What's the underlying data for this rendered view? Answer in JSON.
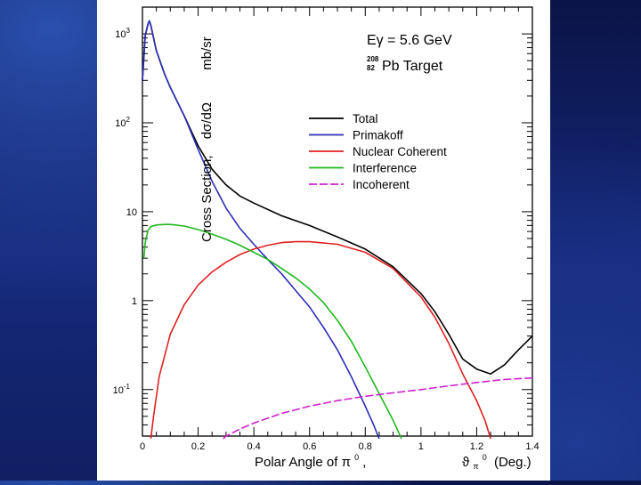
{
  "colors": {
    "background": "#13257a",
    "panel": "#ffffff",
    "total": "#000000",
    "primakoff": "#2c2cb8",
    "nuclear_coherent": "#e02020",
    "interference": "#1fb81f",
    "incoherent": "#d020d0"
  },
  "labels": {
    "ylabel_main": "Cross Section,",
    "ylabel_dsigma": "dσ/dΩ",
    "ylabel_unit": "mb/sr",
    "xlabel_main": "Polar Angle of π",
    "xlabel_sup": "0",
    "xlabel_comma": ",",
    "xlabel_symbol": "ϑ",
    "xlabel_symbol_sub": "π",
    "xlabel_symbol_sup": "0",
    "xlabel_unit": "(Deg.)",
    "energy": "Eγ = 5.6 GeV",
    "target_mass": "208",
    "target_z": "82",
    "target_name": "Pb Target"
  },
  "chart_data": {
    "type": "line",
    "title": "",
    "xlabel": "Polar Angle of π0, ϑπ0 (Deg.)",
    "ylabel": "Cross Section, dσ/dΩ mb/sr",
    "xlim": [
      0,
      1.4
    ],
    "ylim": [
      0.03,
      2000
    ],
    "yscale": "log",
    "xticks": [
      "0",
      "0.2",
      "0.4",
      "0.6",
      "0.8",
      "1",
      "1.2",
      "1.4"
    ],
    "yticks": [
      {
        "value": 0.1,
        "base": "10",
        "exp": "-1"
      },
      {
        "value": 1,
        "base": "1",
        "exp": ""
      },
      {
        "value": 10,
        "base": "10",
        "exp": ""
      },
      {
        "value": 100,
        "base": "10",
        "exp": "2"
      },
      {
        "value": 1000,
        "base": "10",
        "exp": "3"
      }
    ],
    "grid": false,
    "legend_position": "upper-right",
    "series": [
      {
        "name": "Total",
        "color": "#000000",
        "points": [
          [
            0.0,
            300
          ],
          [
            0.01,
            950
          ],
          [
            0.02,
            1300
          ],
          [
            0.025,
            1400
          ],
          [
            0.03,
            1250
          ],
          [
            0.05,
            650
          ],
          [
            0.08,
            350
          ],
          [
            0.1,
            250
          ],
          [
            0.15,
            120
          ],
          [
            0.2,
            55
          ],
          [
            0.25,
            30
          ],
          [
            0.3,
            20
          ],
          [
            0.35,
            15
          ],
          [
            0.4,
            12.5
          ],
          [
            0.5,
            9
          ],
          [
            0.6,
            7
          ],
          [
            0.7,
            5.2
          ],
          [
            0.8,
            3.8
          ],
          [
            0.9,
            2.4
          ],
          [
            1.0,
            1.2
          ],
          [
            1.05,
            0.75
          ],
          [
            1.1,
            0.42
          ],
          [
            1.15,
            0.22
          ],
          [
            1.2,
            0.17
          ],
          [
            1.25,
            0.15
          ],
          [
            1.3,
            0.19
          ],
          [
            1.35,
            0.28
          ],
          [
            1.4,
            0.4
          ]
        ]
      },
      {
        "name": "Primakoff",
        "color": "#2c2cb8",
        "points": [
          [
            0.0,
            300
          ],
          [
            0.01,
            950
          ],
          [
            0.02,
            1300
          ],
          [
            0.025,
            1400
          ],
          [
            0.03,
            1250
          ],
          [
            0.05,
            650
          ],
          [
            0.08,
            350
          ],
          [
            0.1,
            250
          ],
          [
            0.15,
            120
          ],
          [
            0.2,
            50
          ],
          [
            0.25,
            22
          ],
          [
            0.3,
            11
          ],
          [
            0.35,
            6.5
          ],
          [
            0.4,
            4.3
          ],
          [
            0.45,
            2.9
          ],
          [
            0.5,
            2.0
          ],
          [
            0.55,
            1.3
          ],
          [
            0.6,
            0.85
          ],
          [
            0.65,
            0.5
          ],
          [
            0.7,
            0.28
          ],
          [
            0.75,
            0.14
          ],
          [
            0.8,
            0.065
          ],
          [
            0.83,
            0.04
          ],
          [
            0.85,
            0.028
          ]
        ]
      },
      {
        "name": "Nuclear Coherent",
        "color": "#e02020",
        "points": [
          [
            0.03,
            0.028
          ],
          [
            0.04,
            0.05
          ],
          [
            0.06,
            0.14
          ],
          [
            0.1,
            0.42
          ],
          [
            0.15,
            0.9
          ],
          [
            0.2,
            1.5
          ],
          [
            0.25,
            2.1
          ],
          [
            0.3,
            2.7
          ],
          [
            0.35,
            3.3
          ],
          [
            0.4,
            3.8
          ],
          [
            0.45,
            4.2
          ],
          [
            0.5,
            4.5
          ],
          [
            0.55,
            4.6
          ],
          [
            0.6,
            4.6
          ],
          [
            0.7,
            4.3
          ],
          [
            0.8,
            3.5
          ],
          [
            0.9,
            2.3
          ],
          [
            1.0,
            1.1
          ],
          [
            1.05,
            0.65
          ],
          [
            1.1,
            0.33
          ],
          [
            1.15,
            0.15
          ],
          [
            1.2,
            0.075
          ],
          [
            1.23,
            0.045
          ],
          [
            1.25,
            0.028
          ]
        ]
      },
      {
        "name": "Interference",
        "color": "#1fb81f",
        "points": [
          [
            0.005,
            3.0
          ],
          [
            0.01,
            4.5
          ],
          [
            0.02,
            6.2
          ],
          [
            0.03,
            6.8
          ],
          [
            0.05,
            7.1
          ],
          [
            0.08,
            7.2
          ],
          [
            0.1,
            7.2
          ],
          [
            0.15,
            6.9
          ],
          [
            0.2,
            6.3
          ],
          [
            0.25,
            5.6
          ],
          [
            0.3,
            4.9
          ],
          [
            0.35,
            4.2
          ],
          [
            0.4,
            3.5
          ],
          [
            0.45,
            2.9
          ],
          [
            0.5,
            2.3
          ],
          [
            0.55,
            1.8
          ],
          [
            0.6,
            1.35
          ],
          [
            0.65,
            0.95
          ],
          [
            0.7,
            0.6
          ],
          [
            0.75,
            0.35
          ],
          [
            0.8,
            0.18
          ],
          [
            0.85,
            0.09
          ],
          [
            0.9,
            0.045
          ],
          [
            0.93,
            0.028
          ]
        ]
      },
      {
        "name": "Incoherent",
        "color": "#d020d0",
        "points": [
          [
            0.29,
            0.028
          ],
          [
            0.3,
            0.03
          ],
          [
            0.35,
            0.036
          ],
          [
            0.4,
            0.042
          ],
          [
            0.5,
            0.054
          ],
          [
            0.6,
            0.065
          ],
          [
            0.7,
            0.075
          ],
          [
            0.8,
            0.084
          ],
          [
            0.9,
            0.092
          ],
          [
            1.0,
            0.1
          ],
          [
            1.1,
            0.11
          ],
          [
            1.2,
            0.12
          ],
          [
            1.3,
            0.13
          ],
          [
            1.4,
            0.135
          ]
        ]
      }
    ]
  }
}
